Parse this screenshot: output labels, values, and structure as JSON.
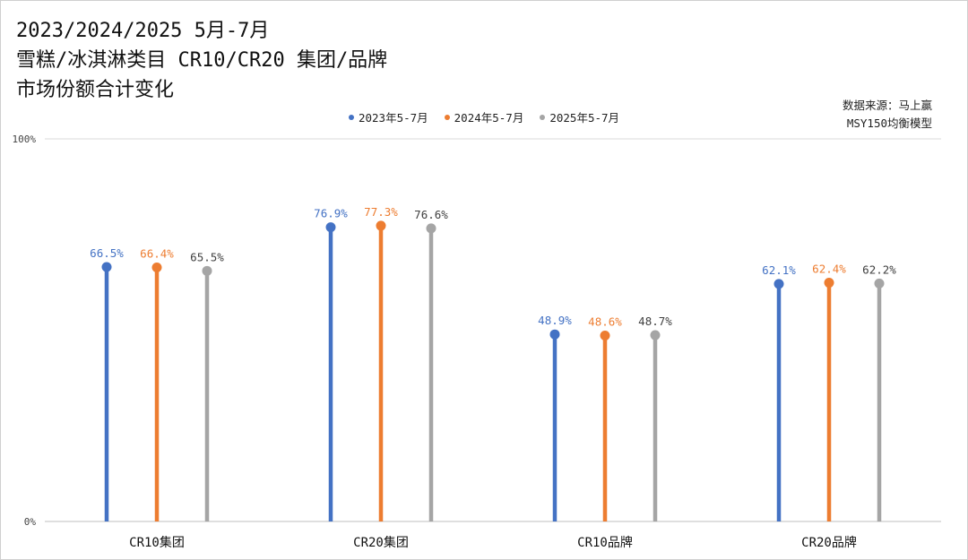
{
  "title_lines": [
    "2023/2024/2025 5月-7月",
    "雪糕/冰淇淋类目 CR10/CR20 集团/品牌",
    "市场份额合计变化"
  ],
  "source_lines": [
    "数据来源：马上赢",
    "MSY150均衡模型"
  ],
  "chart_data": {
    "type": "lollipop",
    "categories": [
      "CR10集团",
      "CR20集团",
      "CR10品牌",
      "CR20品牌"
    ],
    "series": [
      {
        "name": "2023年5-7月",
        "color": "#4472C4",
        "values": [
          66.5,
          76.9,
          48.9,
          62.1
        ],
        "labels": [
          "66.5%",
          "76.9%",
          "48.9%",
          "62.1%"
        ]
      },
      {
        "name": "2024年5-7月",
        "color": "#ED7D31",
        "values": [
          66.4,
          77.3,
          48.6,
          62.4
        ],
        "labels": [
          "66.4%",
          "77.3%",
          "48.6%",
          "62.4%"
        ]
      },
      {
        "name": "2025年5-7月",
        "color": "#A5A5A5",
        "values": [
          65.5,
          76.6,
          48.7,
          62.2
        ],
        "labels": [
          "65.5%",
          "76.6%",
          "48.7%",
          "62.2%"
        ]
      }
    ],
    "ylim": [
      0,
      100
    ],
    "yticks": [
      "0%",
      "100%"
    ],
    "label_colors": [
      "#4472C4",
      "#ED7D31",
      "#404040"
    ],
    "legend_position": "top",
    "grid": false
  }
}
